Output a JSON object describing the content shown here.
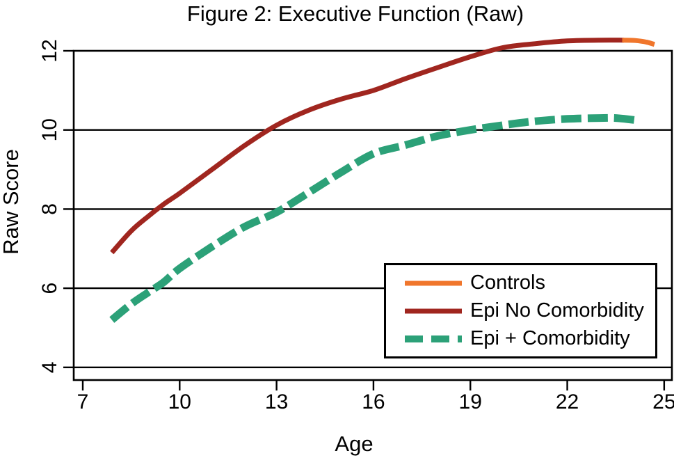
{
  "chart_data": {
    "type": "line",
    "title": "Figure 2: Executive Function (Raw)",
    "xlabel": "Age",
    "ylabel": "Raw Score",
    "x_ticks": [
      7,
      10,
      13,
      16,
      19,
      22,
      25
    ],
    "y_ticks": [
      4,
      6,
      8,
      10,
      12
    ],
    "xlim": [
      6.72,
      25.24
    ],
    "ylim": [
      3.68,
      12
    ],
    "grid": "horizontal-black",
    "legend_position": "inside-bottom-right",
    "axis_color": "#000000",
    "background_color": "#ffffff",
    "series": [
      {
        "name": "Controls",
        "color": "#F0762C",
        "style": "solid",
        "width": 7,
        "points": [
          [
            23.7,
            12.27
          ],
          [
            24.1,
            12.26
          ],
          [
            24.45,
            12.22
          ],
          [
            24.7,
            12.16
          ]
        ]
      },
      {
        "name": "Epi No Comorbidity",
        "color": "#A0261F",
        "style": "solid",
        "width": 7,
        "points": [
          [
            7.9,
            6.9
          ],
          [
            8.5,
            7.45
          ],
          [
            9,
            7.8
          ],
          [
            9.5,
            8.12
          ],
          [
            10,
            8.4
          ],
          [
            11,
            9.0
          ],
          [
            12,
            9.6
          ],
          [
            13,
            10.12
          ],
          [
            14,
            10.5
          ],
          [
            15,
            10.78
          ],
          [
            16,
            11.0
          ],
          [
            17,
            11.3
          ],
          [
            18,
            11.58
          ],
          [
            19,
            11.85
          ],
          [
            20,
            12.08
          ],
          [
            21,
            12.18
          ],
          [
            22,
            12.25
          ],
          [
            23,
            12.27
          ],
          [
            23.75,
            12.27
          ]
        ]
      },
      {
        "name": "Epi + Comorbidity",
        "color": "#2CA178",
        "style": "dashed",
        "width": 11,
        "points": [
          [
            7.9,
            5.2
          ],
          [
            8.5,
            5.6
          ],
          [
            9,
            5.88
          ],
          [
            9.5,
            6.15
          ],
          [
            10,
            6.5
          ],
          [
            11,
            7.05
          ],
          [
            12,
            7.55
          ],
          [
            13,
            7.92
          ],
          [
            14,
            8.42
          ],
          [
            15,
            8.93
          ],
          [
            16,
            9.4
          ],
          [
            17,
            9.62
          ],
          [
            18,
            9.85
          ],
          [
            19,
            10.0
          ],
          [
            20,
            10.12
          ],
          [
            21,
            10.22
          ],
          [
            22,
            10.28
          ],
          [
            23,
            10.3
          ],
          [
            23.5,
            10.3
          ],
          [
            24.1,
            10.25
          ]
        ]
      }
    ]
  }
}
